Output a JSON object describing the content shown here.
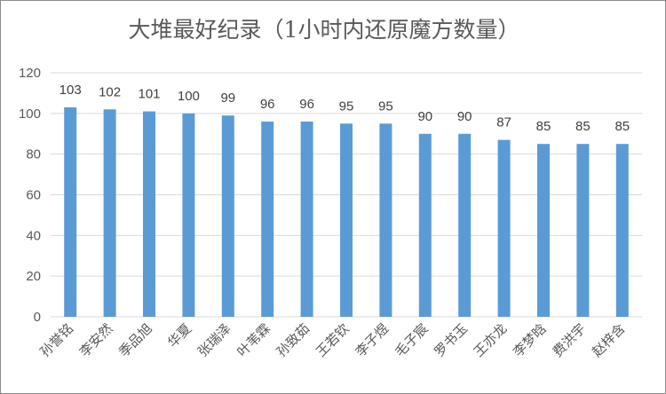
{
  "chart_data": {
    "type": "bar",
    "title": "大堆最好纪录（1小时内还原魔方数量）",
    "categories": [
      "孙誉铭",
      "李安然",
      "季品旭",
      "华夏",
      "张瑞泽",
      "叶苇霖",
      "孙致茹",
      "王若钦",
      "李子煜",
      "毛子宸",
      "罗书玉",
      "王亦龙",
      "李梦晗",
      "费洪宇",
      "赵梓含"
    ],
    "values": [
      103,
      102,
      101,
      100,
      99,
      96,
      96,
      95,
      95,
      90,
      90,
      87,
      85,
      85,
      85
    ],
    "ylim": [
      0,
      120
    ],
    "yticks": [
      0,
      20,
      40,
      60,
      80,
      100,
      120
    ],
    "grid": true,
    "legend": "none",
    "bar_color": "#5b9bd5"
  }
}
